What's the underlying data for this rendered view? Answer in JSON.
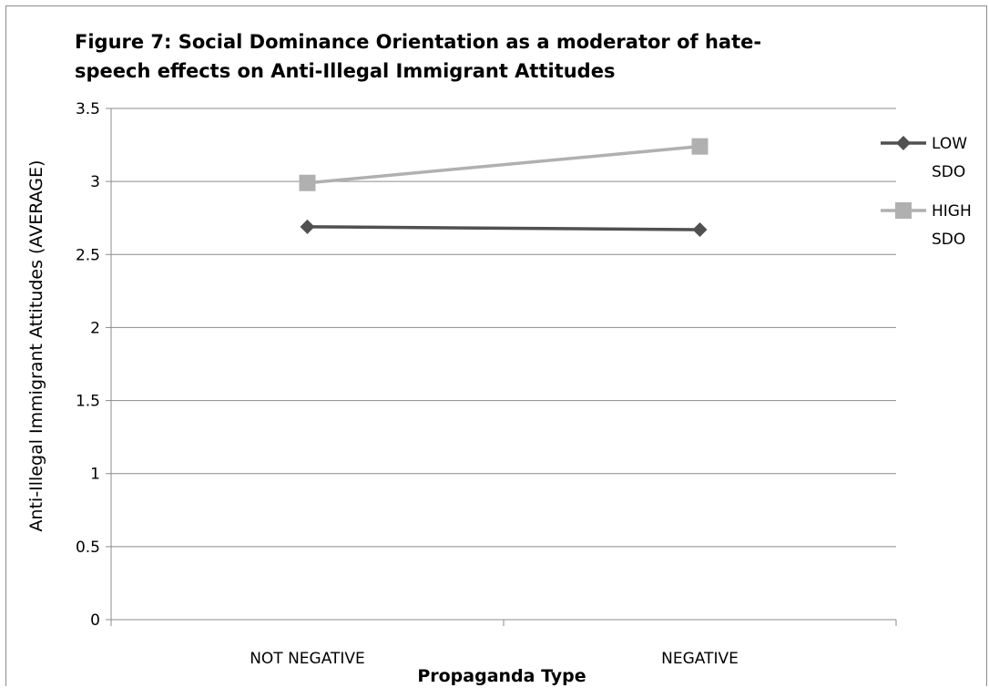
{
  "chart_data": {
    "type": "line",
    "title": "Figure 7: Social Dominance Orientation as a moderator of hate-speech effects on Anti-Illegal Immigrant Attitudes",
    "title_lines": [
      "Figure 7: Social Dominance Orientation as a moderator of hate-",
      "speech effects on Anti-Illegal Immigrant Attitudes"
    ],
    "xlabel": "Propaganda Type",
    "ylabel": "Anti-Illegal Immigrant Attitudes (AVERAGE)",
    "categories": [
      "NOT NEGATIVE",
      "NEGATIVE"
    ],
    "ylim": [
      0,
      3.5
    ],
    "yticks": [
      0,
      0.5,
      1,
      1.5,
      2,
      2.5,
      3,
      3.5
    ],
    "ytick_labels": [
      "0",
      "0.5",
      "1",
      "1.5",
      "2",
      "2.5",
      "3",
      "3.5"
    ],
    "grid": true,
    "legend_position": "right",
    "series": [
      {
        "name": "LOW SDO",
        "name_lines": [
          "LOW",
          "SDO"
        ],
        "values": [
          2.69,
          2.67
        ],
        "marker": "diamond",
        "color": "#505050"
      },
      {
        "name": "HIGH SDO",
        "name_lines": [
          "HIGH",
          "SDO"
        ],
        "values": [
          2.99,
          3.24
        ],
        "marker": "square",
        "color": "#b0b0b0"
      }
    ]
  }
}
